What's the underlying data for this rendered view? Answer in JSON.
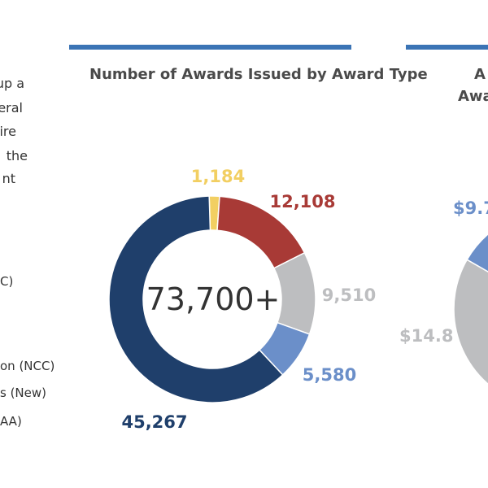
{
  "left_text_fragments": [
    "up a",
    "eral",
    "ire",
    "the",
    "nt",
    "C)",
    "on (NCC)",
    "s (New)",
    "AA)"
  ],
  "chart_data": [
    {
      "type": "pie",
      "title": "Number of Awards Issued by Award Type",
      "center_label": "73,700+",
      "values": [
        1184,
        12108,
        9510,
        5580,
        45267
      ],
      "labels": [
        "1,184",
        "12,108",
        "9,510",
        "5,580",
        "45,267"
      ],
      "colors": [
        "#f2cf62",
        "#a83a36",
        "#bdbec0",
        "#6b8fc9",
        "#1f3f6b"
      ]
    },
    {
      "type": "pie",
      "title_fragments": [
        "A",
        "Awa"
      ],
      "visible_labels": [
        "$9.7",
        "$14.8"
      ],
      "colors": [
        "#6b8fc9",
        "#bdbec0",
        "#a83a36"
      ]
    }
  ]
}
